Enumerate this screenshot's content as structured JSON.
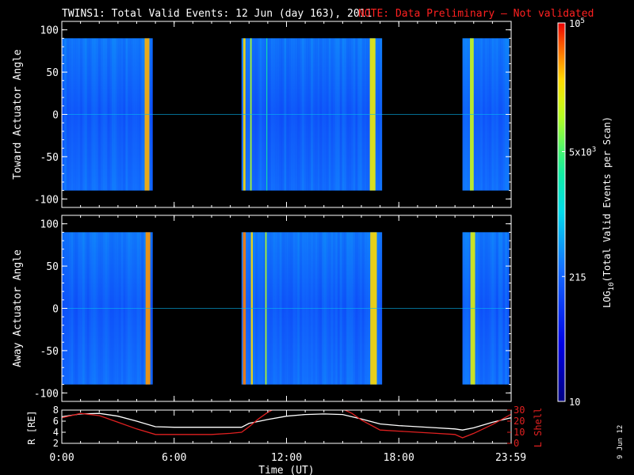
{
  "header": {
    "title": "TWINS1: Total Valid Events: 12 Jun (day 163), 2011",
    "note": "NOTE: Data Preliminary — Not validated",
    "note_color": "#ff2020"
  },
  "side_date": "9 Jun 12",
  "chart_data": [
    {
      "type": "heatmap",
      "ylabel": "Toward Actuator Angle",
      "xlim": [
        0,
        24
      ],
      "ylim": [
        -110,
        110
      ],
      "yticks": [
        100,
        50,
        0,
        -50,
        -100
      ],
      "y_extent": [
        -90,
        90
      ],
      "data_blocks": [
        {
          "start": 0.0,
          "end": 4.85
        },
        {
          "start": 9.6,
          "end": 17.1
        },
        {
          "start": 21.4,
          "end": 23.9
        }
      ],
      "bright_stripes": [
        {
          "center": 4.55,
          "width": 0.25,
          "level": 0.88
        },
        {
          "center": 9.75,
          "width": 0.12,
          "level": 0.85
        },
        {
          "center": 10.1,
          "width": 0.08,
          "level": 0.75
        },
        {
          "center": 10.95,
          "width": 0.05,
          "level": 0.6
        },
        {
          "center": 16.6,
          "width": 0.3,
          "level": 0.82
        },
        {
          "center": 21.9,
          "width": 0.2,
          "level": 0.78
        }
      ]
    },
    {
      "type": "heatmap",
      "ylabel": "Away Actuator Angle",
      "xlim": [
        0,
        24
      ],
      "ylim": [
        -110,
        110
      ],
      "yticks": [
        100,
        50,
        0,
        -50,
        -100
      ],
      "y_extent": [
        -90,
        90
      ],
      "data_blocks": [
        {
          "start": 0.0,
          "end": 4.85
        },
        {
          "start": 9.6,
          "end": 17.1
        },
        {
          "start": 21.4,
          "end": 23.9
        }
      ],
      "bright_stripes": [
        {
          "center": 4.6,
          "width": 0.25,
          "level": 0.9
        },
        {
          "center": 9.75,
          "width": 0.15,
          "level": 0.92
        },
        {
          "center": 10.15,
          "width": 0.1,
          "level": 0.85
        },
        {
          "center": 10.9,
          "width": 0.08,
          "level": 0.75
        },
        {
          "center": 16.65,
          "width": 0.35,
          "level": 0.85
        },
        {
          "center": 21.95,
          "width": 0.25,
          "level": 0.8
        }
      ]
    },
    {
      "type": "line",
      "xlabel": "Time (UT)",
      "ylabel_left": "R [RE]",
      "ylabel_right": "L Shell",
      "xlim": [
        0,
        24
      ],
      "xticks": [
        {
          "value": 0,
          "label": "0:00"
        },
        {
          "value": 6,
          "label": "6:00"
        },
        {
          "value": 12,
          "label": "12:00"
        },
        {
          "value": 18,
          "label": "18:00"
        },
        {
          "value": 23.98,
          "label": "23:59"
        }
      ],
      "ylim_left": [
        2,
        8
      ],
      "yticks_left": [
        2,
        4,
        6,
        8
      ],
      "ylim_right": [
        0,
        30
      ],
      "yticks_right": [
        0,
        10,
        20,
        30
      ],
      "series": [
        {
          "axis": "left",
          "color": "#ffffff",
          "x": [
            0,
            1,
            2,
            3,
            4,
            5,
            6,
            7,
            8,
            9,
            9.6,
            10,
            11,
            12,
            13,
            14,
            15,
            16,
            17,
            18,
            19,
            20,
            21,
            21.4,
            22,
            23,
            23.98
          ],
          "y": [
            6.8,
            7.3,
            7.4,
            6.9,
            6.0,
            5.0,
            4.9,
            4.9,
            4.9,
            4.9,
            4.9,
            5.6,
            6.3,
            6.9,
            7.2,
            7.3,
            7.2,
            6.4,
            5.5,
            5.2,
            5.0,
            4.8,
            4.6,
            4.4,
            4.8,
            5.8,
            6.6
          ]
        },
        {
          "axis": "right",
          "color": "#e02020",
          "x": [
            0,
            1,
            2,
            3,
            4,
            5,
            6,
            7,
            8,
            9,
            9.6,
            10,
            10.5,
            11,
            11.35,
            15.0,
            15.5,
            16,
            17,
            18,
            19,
            20,
            21,
            21.4,
            22,
            23,
            23.98
          ],
          "y": [
            23,
            27,
            25,
            19,
            13,
            8,
            8,
            8,
            8,
            9,
            10,
            15,
            22,
            28,
            31,
            31,
            27,
            21,
            12,
            11,
            10,
            9,
            8,
            5,
            9,
            17,
            26
          ]
        }
      ]
    }
  ],
  "colorbar": {
    "label_pre": "LOG",
    "label_sub": "10",
    "label_post": "(Total Valid Events per Scan)",
    "ticks": [
      {
        "base": "10",
        "sup": "5",
        "frac": 1.0
      },
      {
        "base": "5x10",
        "sup": "3",
        "frac": 0.66
      },
      {
        "base": "215",
        "sup": "",
        "frac": 0.33
      },
      {
        "base": "10",
        "sup": "",
        "frac": 0.0
      }
    ]
  }
}
